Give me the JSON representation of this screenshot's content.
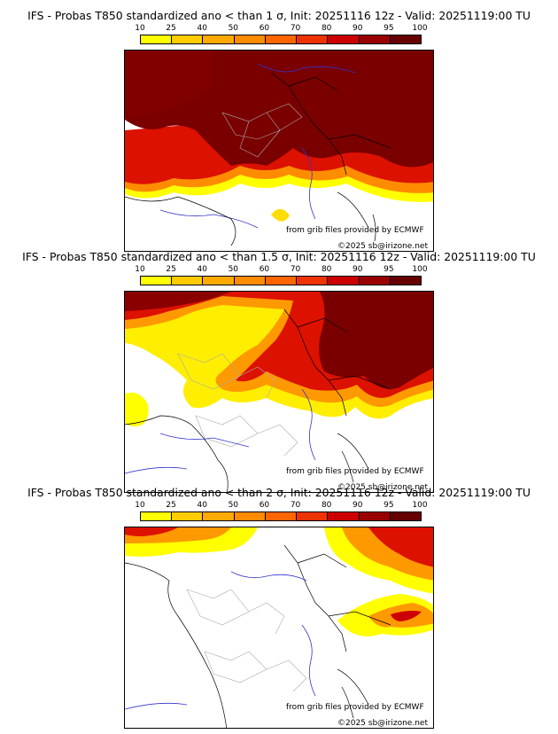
{
  "colorbar": {
    "ticks": [
      "10",
      "25",
      "40",
      "50",
      "60",
      "70",
      "80",
      "90",
      "95",
      "100"
    ],
    "colors": [
      "#ffff00",
      "#ffcc00",
      "#ffaa00",
      "#ff8c00",
      "#ff6600",
      "#ee3300",
      "#cc0000",
      "#990000",
      "#660000"
    ]
  },
  "panels": [
    {
      "title": "IFS - Probas T850  standardized ano < than 1 σ, Init: 20251116 12z - Valid: 20251119:00 TU",
      "source": "from grib files provided by ECMWF",
      "copyright": "©2025 sb@irizone.net"
    },
    {
      "title": "IFS - Probas T850  standardized ano < than 1.5 σ, Init: 20251116 12z - Valid: 20251119:00 TU",
      "source": "from grib files provided by ECMWF",
      "copyright": "©2025 sb@irizone.net"
    },
    {
      "title": "IFS - Probas T850  standardized ano < than 2 σ, Init: 20251116 12z - Valid: 20251119:00 TU",
      "source": "from grib files provided by ECMWF",
      "copyright": "©2025 sb@irizone.net"
    }
  ]
}
